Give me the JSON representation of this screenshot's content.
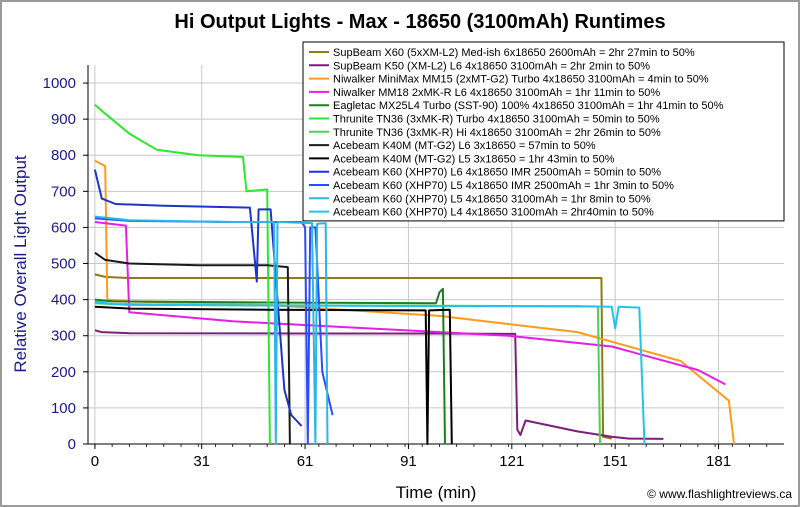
{
  "chart_data": {
    "type": "line",
    "title": "Hi Output Lights - Max - 18650 (3100mAh) Runtimes",
    "xlabel": "Time (min)",
    "ylabel": "Relative Overall Light Output",
    "xlim": [
      -2,
      200
    ],
    "ylim": [
      0,
      1050
    ],
    "x_ticks": [
      0,
      31,
      61,
      91,
      121,
      151,
      181
    ],
    "y_ticks": [
      0,
      100,
      200,
      300,
      400,
      500,
      600,
      700,
      800,
      900,
      1000
    ],
    "grid": true,
    "legend_position": "top-right",
    "credit": "© www.flashlightreviews.ca",
    "series": [
      {
        "name": "SupBeam X60 (5xXM-L2) Med-ish 6x18650 2600mAh = 2hr 27min to 50%",
        "color": "#8c7b12",
        "points": [
          [
            0,
            470
          ],
          [
            3,
            463
          ],
          [
            10,
            460
          ],
          [
            60,
            460
          ],
          [
            100,
            460
          ],
          [
            147,
            460
          ],
          [
            147.5,
            20
          ],
          [
            150,
            15
          ]
        ]
      },
      {
        "name": "SupBeam K50 (XM-L2) L6 4x18650 3100mAh = 2hr 2min to 50%",
        "color": "#7b1f7b",
        "points": [
          [
            0,
            315
          ],
          [
            2,
            310
          ],
          [
            10,
            307
          ],
          [
            60,
            306
          ],
          [
            100,
            306
          ],
          [
            122,
            305
          ],
          [
            122.6,
            40
          ],
          [
            123.5,
            25
          ],
          [
            125,
            65
          ],
          [
            130,
            55
          ],
          [
            140,
            35
          ],
          [
            150,
            20
          ],
          [
            155,
            15
          ],
          [
            165,
            14
          ]
        ]
      },
      {
        "name": "Niwalker MiniMax MM15 (2xMT-G2) Turbo 4x18650 3100mAh = 4min to 50%",
        "color": "#ff9b1a",
        "points": [
          [
            0,
            785
          ],
          [
            3,
            770
          ],
          [
            3.6,
            400
          ],
          [
            10,
            395
          ],
          [
            50,
            385
          ],
          [
            100,
            355
          ],
          [
            140,
            310
          ],
          [
            170,
            230
          ],
          [
            184,
            120
          ],
          [
            185.5,
            0
          ]
        ]
      },
      {
        "name": "Niwalker MM18 2xMK-R L6 4x18650 3100mAh = 1hr 11min to 50%",
        "color": "#e61ee6",
        "points": [
          [
            0,
            615
          ],
          [
            9,
            605
          ],
          [
            10,
            365
          ],
          [
            40,
            340
          ],
          [
            80,
            320
          ],
          [
            120,
            300
          ],
          [
            150,
            270
          ],
          [
            175,
            205
          ],
          [
            183,
            165
          ]
        ]
      },
      {
        "name": "Eagletac MX25L4 Turbo (SST-90) 100% 4x18650 3100mAh = 1hr 41min to 50%",
        "color": "#1e7d1e",
        "points": [
          [
            0,
            400
          ],
          [
            5,
            395
          ],
          [
            50,
            392
          ],
          [
            99,
            390
          ],
          [
            100,
            420
          ],
          [
            101,
            430
          ],
          [
            101.6,
            0
          ]
        ]
      },
      {
        "name": "Thrunite TN36 (3xMK-R) Turbo 4x18650 3100mAh = 50min to 50%",
        "color": "#2ee62e",
        "points": [
          [
            0,
            940
          ],
          [
            3,
            915
          ],
          [
            10,
            860
          ],
          [
            18,
            815
          ],
          [
            30,
            800
          ],
          [
            43,
            795
          ],
          [
            44,
            700
          ],
          [
            50,
            705
          ],
          [
            50.8,
            0
          ]
        ]
      },
      {
        "name": "Thrunite TN36 (3xMK-R) Hi 4x18650 3100mAh = 2hr 26min to 50%",
        "color": "#4cd24c",
        "points": [
          [
            0,
            390
          ],
          [
            10,
            385
          ],
          [
            60,
            384
          ],
          [
            100,
            383
          ],
          [
            140,
            382
          ],
          [
            146,
            381
          ],
          [
            146.6,
            0
          ]
        ]
      },
      {
        "name": "Acebeam K40M (MT-G2) L6 3x18650 = 57min to 50%",
        "color": "#1a1a1a",
        "points": [
          [
            0,
            530
          ],
          [
            3,
            510
          ],
          [
            10,
            500
          ],
          [
            30,
            495
          ],
          [
            50,
            495
          ],
          [
            56,
            490
          ],
          [
            56.6,
            0
          ]
        ]
      },
      {
        "name": "Acebeam K40M (MT-G2) L5 3x18650 = 1hr 43min to 50%",
        "color": "#000000",
        "points": [
          [
            0,
            380
          ],
          [
            10,
            375
          ],
          [
            50,
            372
          ],
          [
            96,
            370
          ],
          [
            96.5,
            0
          ],
          [
            97,
            370
          ],
          [
            103,
            372
          ],
          [
            103.6,
            0
          ]
        ]
      },
      {
        "name": "Acebeam K60 (XHP70) L6 4x18650 IMR 2500mAh = 50min to 50%",
        "color": "#1f33c8",
        "points": [
          [
            0,
            760
          ],
          [
            2,
            680
          ],
          [
            6,
            665
          ],
          [
            20,
            660
          ],
          [
            45,
            655
          ],
          [
            47,
            450
          ],
          [
            47.5,
            650
          ],
          [
            51,
            650
          ],
          [
            55,
            150
          ],
          [
            57,
            80
          ],
          [
            60,
            50
          ]
        ]
      },
      {
        "name": "Acebeam K60 (XHP70) L5 4x18650 IMR 2500mAh = 1hr 3min to 50%",
        "color": "#2a4cff",
        "points": [
          [
            0,
            625
          ],
          [
            10,
            618
          ],
          [
            40,
            615
          ],
          [
            60,
            615
          ],
          [
            61,
            600
          ],
          [
            61.8,
            0
          ],
          [
            62.5,
            600
          ],
          [
            64,
            600
          ],
          [
            66,
            200
          ],
          [
            69,
            80
          ]
        ]
      },
      {
        "name": "Acebeam K60 (XHP70) L5 4x18650 3100mAh = 1hr 8min to 50%",
        "color": "#2ab6e6",
        "points": [
          [
            0,
            630
          ],
          [
            10,
            620
          ],
          [
            40,
            615
          ],
          [
            52,
            615
          ],
          [
            52.5,
            0
          ],
          [
            53,
            615
          ],
          [
            63,
            612
          ],
          [
            64,
            0
          ],
          [
            64.5,
            610
          ],
          [
            67,
            612
          ],
          [
            67.5,
            0
          ]
        ]
      },
      {
        "name": "Acebeam K60 (XHP70) L4 4x18650 3100mAh = 2hr40min to 50%",
        "color": "#22c3e8",
        "points": [
          [
            0,
            395
          ],
          [
            5,
            388
          ],
          [
            40,
            384
          ],
          [
            100,
            382
          ],
          [
            145,
            381
          ],
          [
            150,
            380
          ],
          [
            151,
            320
          ],
          [
            152,
            380
          ],
          [
            158,
            378
          ],
          [
            159.5,
            0
          ]
        ]
      }
    ]
  }
}
